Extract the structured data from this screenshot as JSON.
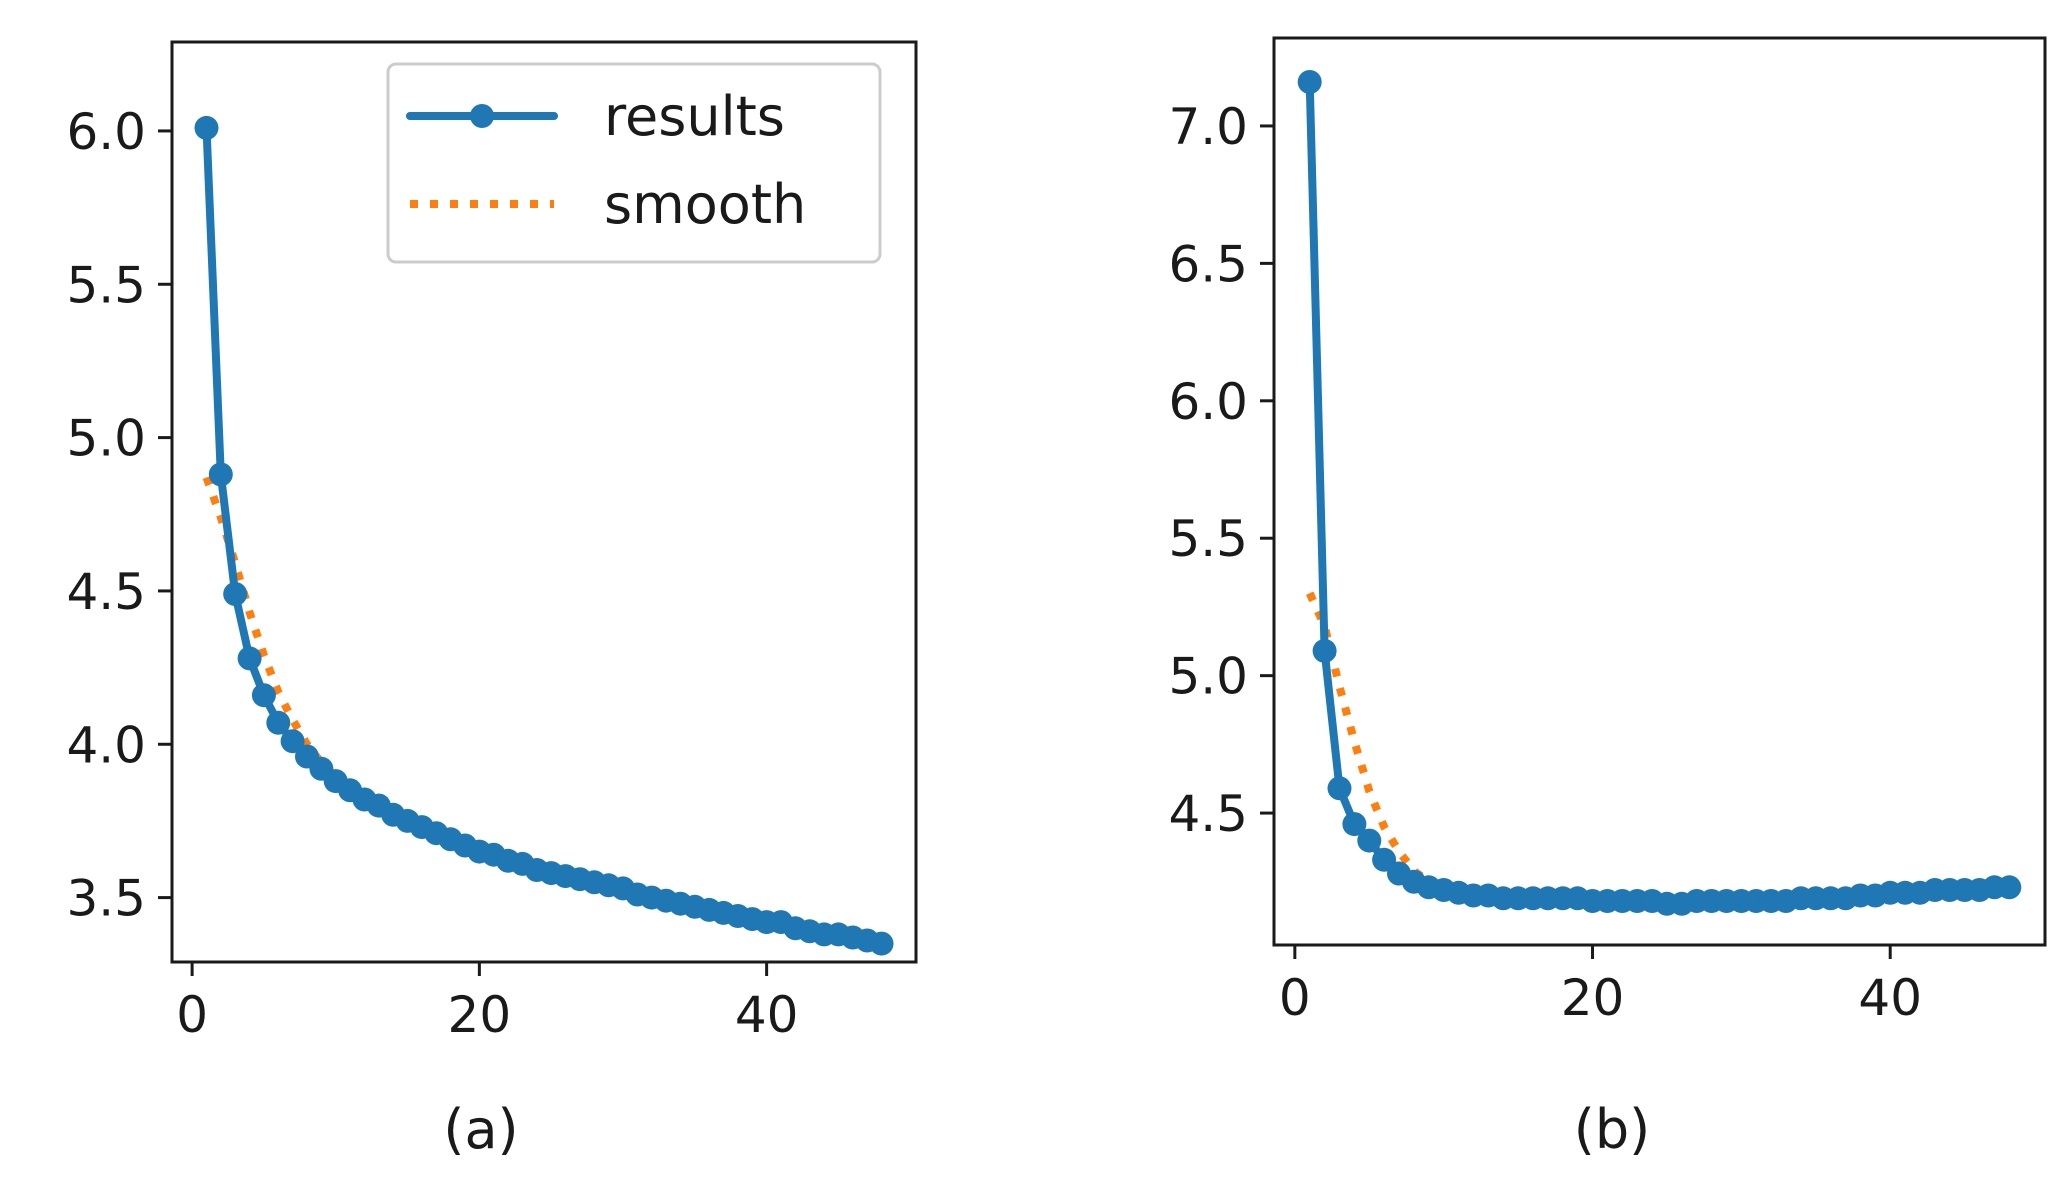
{
  "chart_data": [
    {
      "type": "line",
      "caption": "(a)",
      "xlim": [
        -1.4,
        50.4
      ],
      "ylim": [
        3.29,
        6.29
      ],
      "x_ticks": [
        0,
        20,
        40
      ],
      "x_tick_labels": [
        "0",
        "20",
        "40"
      ],
      "y_ticks": [
        3.5,
        4.0,
        4.5,
        5.0,
        5.5,
        6.0
      ],
      "y_tick_labels": [
        "3.5",
        "4.0",
        "4.5",
        "5.0",
        "5.5",
        "6.0"
      ],
      "grid": false,
      "legend_position": "top-right",
      "x": [
        1,
        2,
        3,
        4,
        5,
        6,
        7,
        8,
        9,
        10,
        11,
        12,
        13,
        14,
        15,
        16,
        17,
        18,
        19,
        20,
        21,
        22,
        23,
        24,
        25,
        26,
        27,
        28,
        29,
        30,
        31,
        32,
        33,
        34,
        35,
        36,
        37,
        38,
        39,
        40,
        41,
        42,
        43,
        44,
        45,
        46,
        47,
        48
      ],
      "series": [
        {
          "name": "results",
          "style": "solid-marker",
          "color": "#1f77b4",
          "values": [
            6.01,
            4.88,
            4.49,
            4.28,
            4.16,
            4.07,
            4.01,
            3.96,
            3.92,
            3.88,
            3.85,
            3.82,
            3.8,
            3.77,
            3.75,
            3.73,
            3.71,
            3.69,
            3.67,
            3.65,
            3.64,
            3.62,
            3.61,
            3.59,
            3.58,
            3.57,
            3.56,
            3.55,
            3.54,
            3.53,
            3.51,
            3.5,
            3.49,
            3.48,
            3.47,
            3.46,
            3.45,
            3.44,
            3.43,
            3.42,
            3.42,
            3.4,
            3.39,
            3.38,
            3.38,
            3.37,
            3.36,
            3.35
          ]
        },
        {
          "name": "smooth",
          "style": "dotted",
          "color": "#ff7f0e",
          "values": [
            4.87,
            4.74,
            4.59,
            4.43,
            4.29,
            4.17,
            4.08,
            4.0,
            3.94,
            3.89,
            3.85,
            3.82,
            3.79,
            3.77,
            3.75,
            3.73,
            3.71,
            3.69,
            3.67,
            3.65,
            3.64,
            3.62,
            3.61,
            3.59,
            3.58,
            3.57,
            3.56,
            3.55,
            3.54,
            3.53,
            3.51,
            3.5,
            3.49,
            3.48,
            3.47,
            3.46,
            3.45,
            3.44,
            3.43,
            3.42,
            3.41,
            3.4,
            3.39,
            3.38,
            3.38,
            3.37,
            3.36,
            3.35
          ]
        }
      ]
    },
    {
      "type": "line",
      "caption": "(b)",
      "xlim": [
        -1.4,
        50.4
      ],
      "ylim": [
        4.02,
        7.32
      ],
      "x_ticks": [
        0,
        20,
        40
      ],
      "x_tick_labels": [
        "0",
        "20",
        "40"
      ],
      "y_ticks": [
        4.5,
        5.0,
        5.5,
        6.0,
        6.5,
        7.0
      ],
      "y_tick_labels": [
        "4.5",
        "5.0",
        "5.5",
        "6.0",
        "6.5",
        "7.0"
      ],
      "grid": false,
      "x": [
        1,
        2,
        3,
        4,
        5,
        6,
        7,
        8,
        9,
        10,
        11,
        12,
        13,
        14,
        15,
        16,
        17,
        18,
        19,
        20,
        21,
        22,
        23,
        24,
        25,
        26,
        27,
        28,
        29,
        30,
        31,
        32,
        33,
        34,
        35,
        36,
        37,
        38,
        39,
        40,
        41,
        42,
        43,
        44,
        45,
        46,
        47,
        48
      ],
      "series": [
        {
          "name": "results",
          "style": "solid-marker",
          "color": "#1f77b4",
          "values": [
            7.16,
            5.09,
            4.59,
            4.46,
            4.4,
            4.33,
            4.28,
            4.25,
            4.23,
            4.22,
            4.21,
            4.2,
            4.2,
            4.19,
            4.19,
            4.19,
            4.19,
            4.19,
            4.19,
            4.18,
            4.18,
            4.18,
            4.18,
            4.18,
            4.17,
            4.17,
            4.18,
            4.18,
            4.18,
            4.18,
            4.18,
            4.18,
            4.18,
            4.19,
            4.19,
            4.19,
            4.19,
            4.2,
            4.2,
            4.21,
            4.21,
            4.21,
            4.22,
            4.22,
            4.22,
            4.22,
            4.23,
            4.23
          ]
        },
        {
          "name": "smooth",
          "style": "dotted",
          "color": "#ff7f0e",
          "values": [
            5.3,
            5.18,
            4.96,
            4.76,
            4.58,
            4.45,
            4.36,
            4.29,
            4.25,
            4.23,
            4.21,
            4.21,
            4.2,
            4.2,
            4.19,
            4.19,
            4.19,
            4.19,
            4.19,
            4.19,
            4.18,
            4.18,
            4.18,
            4.18,
            4.18,
            4.18,
            4.18,
            4.18,
            4.18,
            4.18,
            4.18,
            4.18,
            4.18,
            4.18,
            4.19,
            4.19,
            4.19,
            4.19,
            4.2,
            4.2,
            4.2,
            4.21,
            4.21,
            4.21,
            4.21,
            4.22,
            4.22,
            4.22
          ]
        }
      ]
    }
  ]
}
